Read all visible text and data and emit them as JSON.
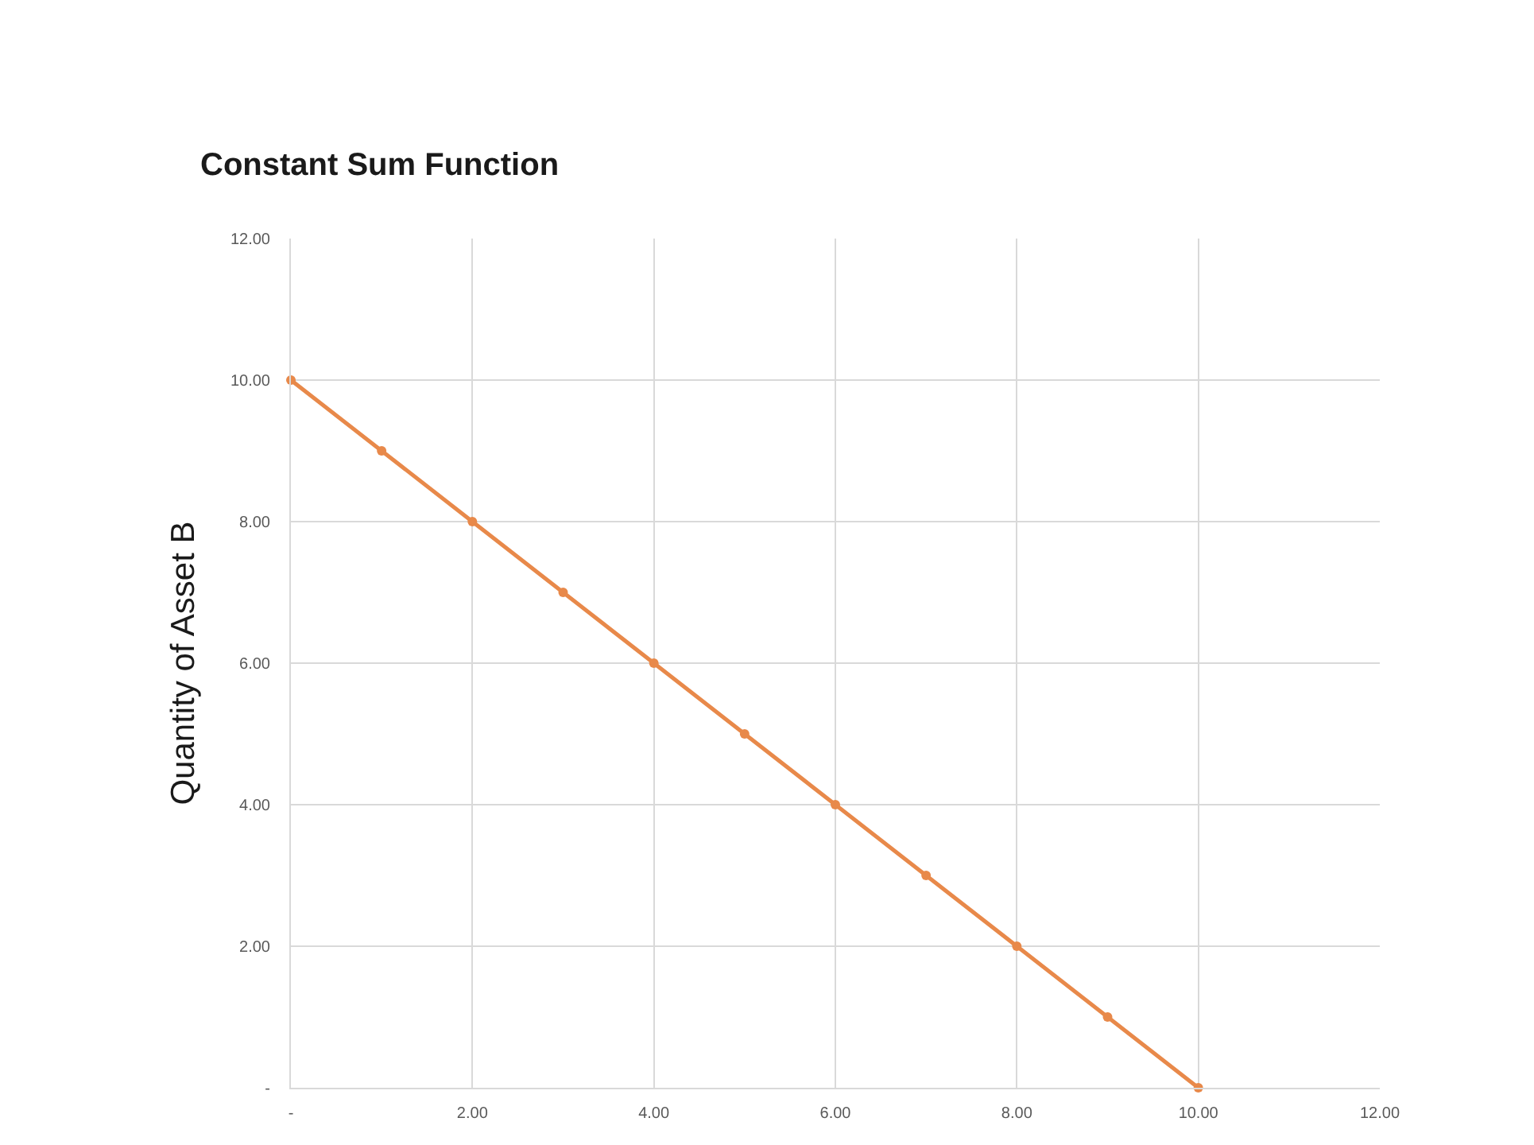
{
  "chart_data": {
    "type": "line",
    "title": "Constant Sum Function",
    "ylabel": "Quantity of Asset B",
    "x": [
      0,
      1,
      2,
      3,
      4,
      5,
      6,
      7,
      8,
      9,
      10
    ],
    "series": [
      {
        "color": "#e8894a",
        "values": [
          10,
          9,
          8,
          7,
          6,
          5,
          4,
          3,
          2,
          1,
          0
        ]
      }
    ],
    "xlim": [
      0,
      12
    ],
    "ylim": [
      0,
      12
    ],
    "xticks": [
      {
        "value": 0,
        "label": "-"
      },
      {
        "value": 2,
        "label": "2.00"
      },
      {
        "value": 4,
        "label": "4.00"
      },
      {
        "value": 6,
        "label": "6.00"
      },
      {
        "value": 8,
        "label": "8.00"
      },
      {
        "value": 10,
        "label": "10.00"
      },
      {
        "value": 12,
        "label": "12.00"
      }
    ],
    "yticks": [
      {
        "value": 0,
        "label": "-"
      },
      {
        "value": 2,
        "label": "2.00"
      },
      {
        "value": 4,
        "label": "4.00"
      },
      {
        "value": 6,
        "label": "6.00"
      },
      {
        "value": 8,
        "label": "8.00"
      },
      {
        "value": 10,
        "label": "10.00"
      },
      {
        "value": 12,
        "label": "12.00"
      }
    ],
    "grid": true,
    "marker": "circle",
    "line_style": "solid"
  }
}
